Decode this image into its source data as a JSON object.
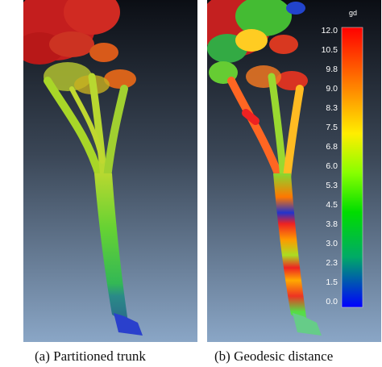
{
  "panels": [
    {
      "caption": "(a) Partitioned trunk"
    },
    {
      "caption": "(b) Geodesic distance"
    }
  ],
  "colorbar": {
    "unit": "gd",
    "ticks": [
      "12.0",
      "10.5",
      "9.8",
      "9.0",
      "8.3",
      "7.5",
      "6.8",
      "6.0",
      "5.3",
      "4.5",
      "3.8",
      "3.0",
      "2.3",
      "1.5",
      "0.0"
    ],
    "colors": [
      "#ff0000",
      "#ff8800",
      "#ffee00",
      "#88ff00",
      "#00dd00",
      "#00aa66",
      "#0000ff"
    ]
  },
  "colors": {
    "sky_top": "#0b0e14",
    "sky_bottom": "#8aa6c6",
    "canopy_red": "#cc2020",
    "trunk_green": "#55cc33",
    "base_blue": "#2233bb"
  }
}
